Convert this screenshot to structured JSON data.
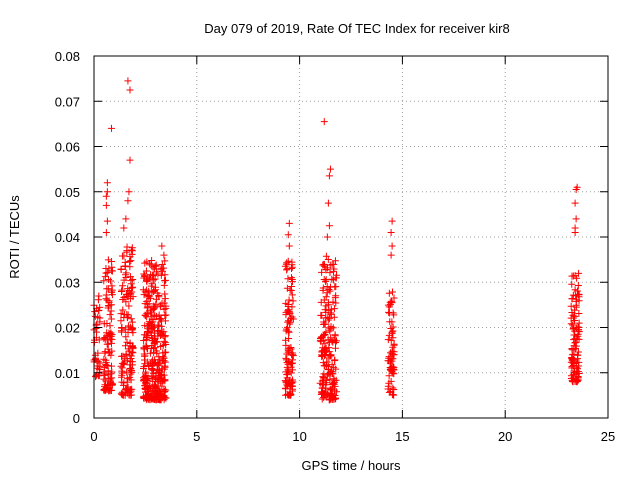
{
  "chart_data": {
    "type": "scatter",
    "title": "Day 079 of 2019, Rate Of TEC Index for receiver kir8",
    "xlabel": "GPS time / hours",
    "ylabel": "ROTI / TECUs",
    "xlim": [
      0,
      25
    ],
    "ylim": [
      0,
      0.08
    ],
    "x_ticks": [
      0,
      5,
      10,
      15,
      20,
      25
    ],
    "x_tick_labels": [
      "0",
      "5",
      "10",
      "15",
      "20",
      "25"
    ],
    "y_ticks": [
      0,
      0.01,
      0.02,
      0.03,
      0.04,
      0.05,
      0.06,
      0.07,
      0.08
    ],
    "y_tick_labels": [
      "0",
      "0.01",
      "0.02",
      "0.03",
      "0.04",
      "0.05",
      "0.06",
      "0.07",
      "0.08"
    ],
    "grid": true,
    "marker": "+",
    "marker_color": "#ff0000",
    "clusters": [
      {
        "x_start": 0.0,
        "x_end": 0.3,
        "y_min": 0.009,
        "y_max": 0.027,
        "count": 40
      },
      {
        "x_start": 0.45,
        "x_end": 0.9,
        "y_min": 0.006,
        "y_max": 0.035,
        "count": 110
      },
      {
        "x_start": 1.3,
        "x_end": 1.9,
        "y_min": 0.005,
        "y_max": 0.038,
        "count": 140
      },
      {
        "x_start": 2.4,
        "x_end": 3.5,
        "y_min": 0.004,
        "y_max": 0.035,
        "count": 360
      },
      {
        "x_start": 9.3,
        "x_end": 9.7,
        "y_min": 0.005,
        "y_max": 0.036,
        "count": 110
      },
      {
        "x_start": 11.0,
        "x_end": 11.8,
        "y_min": 0.004,
        "y_max": 0.036,
        "count": 200
      },
      {
        "x_start": 14.3,
        "x_end": 14.6,
        "y_min": 0.005,
        "y_max": 0.028,
        "count": 70
      },
      {
        "x_start": 23.2,
        "x_end": 23.6,
        "y_min": 0.008,
        "y_max": 0.032,
        "count": 110
      }
    ],
    "points": [
      [
        0.65,
        0.052
      ],
      [
        0.6,
        0.049
      ],
      [
        0.6,
        0.047
      ],
      [
        0.65,
        0.05
      ],
      [
        0.85,
        0.064
      ],
      [
        0.65,
        0.0435
      ],
      [
        0.6,
        0.041
      ],
      [
        1.65,
        0.0745
      ],
      [
        1.75,
        0.0725
      ],
      [
        1.75,
        0.057
      ],
      [
        1.7,
        0.05
      ],
      [
        1.65,
        0.048
      ],
      [
        1.55,
        0.044
      ],
      [
        1.45,
        0.042
      ],
      [
        1.6,
        0.037
      ],
      [
        2.55,
        0.0325
      ],
      [
        3.3,
        0.038
      ],
      [
        3.4,
        0.036
      ],
      [
        9.5,
        0.043
      ],
      [
        9.45,
        0.0405
      ],
      [
        9.5,
        0.038
      ],
      [
        11.2,
        0.0655
      ],
      [
        11.5,
        0.055
      ],
      [
        11.45,
        0.0535
      ],
      [
        11.4,
        0.0475
      ],
      [
        11.45,
        0.0425
      ],
      [
        11.35,
        0.04
      ],
      [
        14.5,
        0.0435
      ],
      [
        14.45,
        0.041
      ],
      [
        14.5,
        0.038
      ],
      [
        14.45,
        0.036
      ],
      [
        23.5,
        0.051
      ],
      [
        23.45,
        0.0505
      ],
      [
        23.4,
        0.0475
      ],
      [
        23.45,
        0.044
      ],
      [
        23.4,
        0.042
      ],
      [
        23.4,
        0.041
      ]
    ]
  }
}
